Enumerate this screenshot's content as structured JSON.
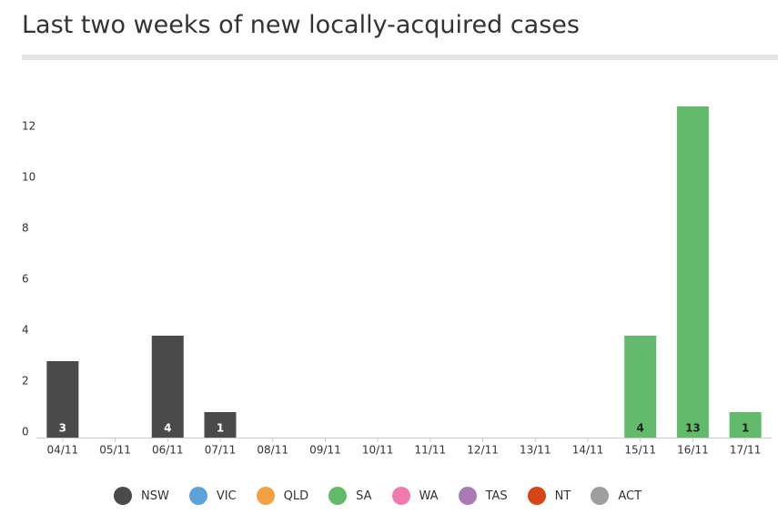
{
  "chart_data": {
    "type": "stacked_bar",
    "title": "Last two weeks of new locally-acquired cases",
    "categories": [
      "04/11",
      "05/11",
      "06/11",
      "07/11",
      "08/11",
      "09/11",
      "10/11",
      "11/11",
      "12/11",
      "13/11",
      "14/11",
      "15/11",
      "16/11",
      "17/11"
    ],
    "series": [
      {
        "name": "NSW",
        "color": "#4a4a4a",
        "values": [
          3,
          0,
          4,
          1,
          0,
          0,
          0,
          0,
          0,
          0,
          0,
          0,
          0,
          0
        ]
      },
      {
        "name": "VIC",
        "color": "#5ba3d9",
        "values": [
          0,
          0,
          0,
          0,
          0,
          0,
          0,
          0,
          0,
          0,
          0,
          0,
          0,
          0
        ]
      },
      {
        "name": "QLD",
        "color": "#f5a043",
        "values": [
          0,
          0,
          0,
          0,
          0,
          0,
          0,
          0,
          0,
          0,
          0,
          0,
          0,
          0
        ]
      },
      {
        "name": "SA",
        "color": "#62bb6b",
        "values": [
          0,
          0,
          0,
          0,
          0,
          0,
          0,
          0,
          0,
          0,
          0,
          4,
          13,
          1
        ]
      },
      {
        "name": "WA",
        "color": "#f07caf",
        "values": [
          0,
          0,
          0,
          0,
          0,
          0,
          0,
          0,
          0,
          0,
          0,
          0,
          0,
          0
        ]
      },
      {
        "name": "TAS",
        "color": "#a97bb5",
        "values": [
          0,
          0,
          0,
          0,
          0,
          0,
          0,
          0,
          0,
          0,
          0,
          0,
          0,
          0
        ]
      },
      {
        "name": "NT",
        "color": "#d64515",
        "values": [
          0,
          0,
          0,
          0,
          0,
          0,
          0,
          0,
          0,
          0,
          0,
          0,
          0,
          0
        ]
      },
      {
        "name": "ACT",
        "color": "#9e9e9e",
        "values": [
          0,
          0,
          0,
          0,
          0,
          0,
          0,
          0,
          0,
          0,
          0,
          0,
          0,
          0
        ]
      }
    ],
    "ylim": [
      0,
      14
    ],
    "yticks": [
      0,
      2,
      4,
      6,
      8,
      10,
      12
    ],
    "grid": false,
    "legend": "bottom"
  }
}
